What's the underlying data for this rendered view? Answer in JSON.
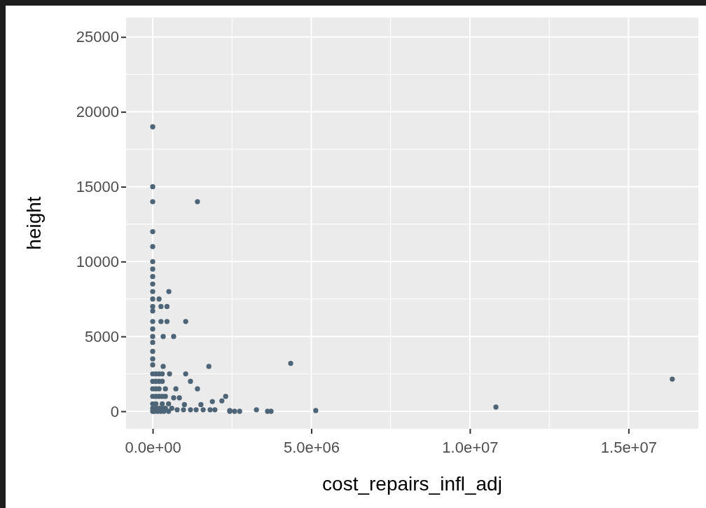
{
  "chart_data": {
    "type": "scatter",
    "xlabel": "cost_repairs_infl_adj",
    "ylabel": "height",
    "xlim": [
      -840000,
      17200000
    ],
    "ylim": [
      -1170,
      26300
    ],
    "xticks": [
      {
        "value": 0,
        "label": "0.0e+00"
      },
      {
        "value": 2500000,
        "label": null
      },
      {
        "value": 5000000,
        "label": "5.0e+06"
      },
      {
        "value": 7500000,
        "label": null
      },
      {
        "value": 10000000,
        "label": "1.0e+07"
      },
      {
        "value": 12500000,
        "label": null
      },
      {
        "value": 15000000,
        "label": "1.5e+07"
      }
    ],
    "yticks": [
      0,
      {
        "value": 2500,
        "label": null
      },
      5000,
      {
        "value": 7500,
        "label": null
      },
      10000,
      {
        "value": 12500,
        "label": null
      },
      15000,
      {
        "value": 17500,
        "label": null
      },
      20000,
      {
        "value": 22500,
        "label": null
      },
      25000
    ],
    "grid": true,
    "marker": "circle",
    "series": [
      {
        "color": "#4e6577",
        "x": [
          0,
          0,
          0,
          1410000,
          0,
          0,
          0,
          0,
          0,
          0,
          0,
          510000,
          0,
          200000,
          0,
          260000,
          450000,
          0,
          0,
          260000,
          450000,
          1040000,
          0,
          0,
          330000,
          660000,
          0,
          0,
          0,
          0,
          330000,
          1770000,
          0,
          530000,
          1040000,
          1190000,
          730000,
          1410000,
          660000,
          840000,
          1000000,
          1520000,
          1880000,
          2180000,
          2300000,
          770000,
          970000,
          1190000,
          1370000,
          1590000,
          1810000,
          1960000,
          2430000,
          4350000,
          2430000,
          2580000,
          2740000,
          3270000,
          3620000,
          3730000,
          5140000,
          10820000,
          16380000,
          100000,
          200000,
          300000,
          100000,
          200000,
          300000,
          400000,
          100000,
          200000,
          300000,
          100000,
          200000,
          400000,
          100000,
          300000,
          500000,
          0,
          100000,
          200000,
          300000,
          400000,
          600000,
          0,
          0,
          0,
          0,
          0,
          50000,
          150000,
          250000,
          350000,
          500000
        ],
        "values": [
          19000,
          15000,
          14000,
          14000,
          12000,
          11000,
          10000,
          9500,
          9000,
          8500,
          8000,
          8000,
          7500,
          7500,
          7000,
          7000,
          7000,
          6700,
          6000,
          6000,
          6000,
          6000,
          5500,
          5000,
          5000,
          5000,
          4600,
          4000,
          3500,
          3100,
          3000,
          3000,
          2500,
          2500,
          2500,
          2000,
          1500,
          1500,
          900,
          900,
          450,
          450,
          650,
          700,
          1000,
          100,
          100,
          100,
          100,
          100,
          100,
          100,
          50,
          3200,
          0,
          0,
          0,
          100,
          0,
          0,
          50,
          280,
          2150,
          2500,
          2500,
          2500,
          2000,
          2000,
          2000,
          1500,
          1500,
          1500,
          1000,
          1000,
          1000,
          1000,
          500,
          500,
          500,
          200,
          200,
          200,
          200,
          200,
          200,
          2000,
          1500,
          1000,
          500,
          0,
          0,
          0,
          0,
          0,
          0
        ]
      }
    ]
  }
}
